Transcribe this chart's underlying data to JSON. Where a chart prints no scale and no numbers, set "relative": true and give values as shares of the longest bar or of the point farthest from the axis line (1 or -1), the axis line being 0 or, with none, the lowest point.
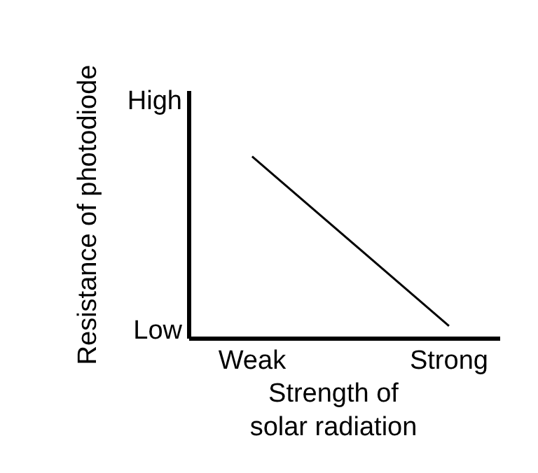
{
  "chart_data": {
    "type": "line",
    "xlabel": "Strength of solar radiation",
    "ylabel": "Resistance of photodiode",
    "categories": [
      "Weak",
      "Strong"
    ],
    "relative": true,
    "series": [
      {
        "color": "#000000",
        "values": [
          1,
          0.07
        ]
      }
    ],
    "annotations": [
      "High",
      "Low"
    ],
    "grid": false,
    "legend": false,
    "marker": "none",
    "line_style": "solid"
  }
}
